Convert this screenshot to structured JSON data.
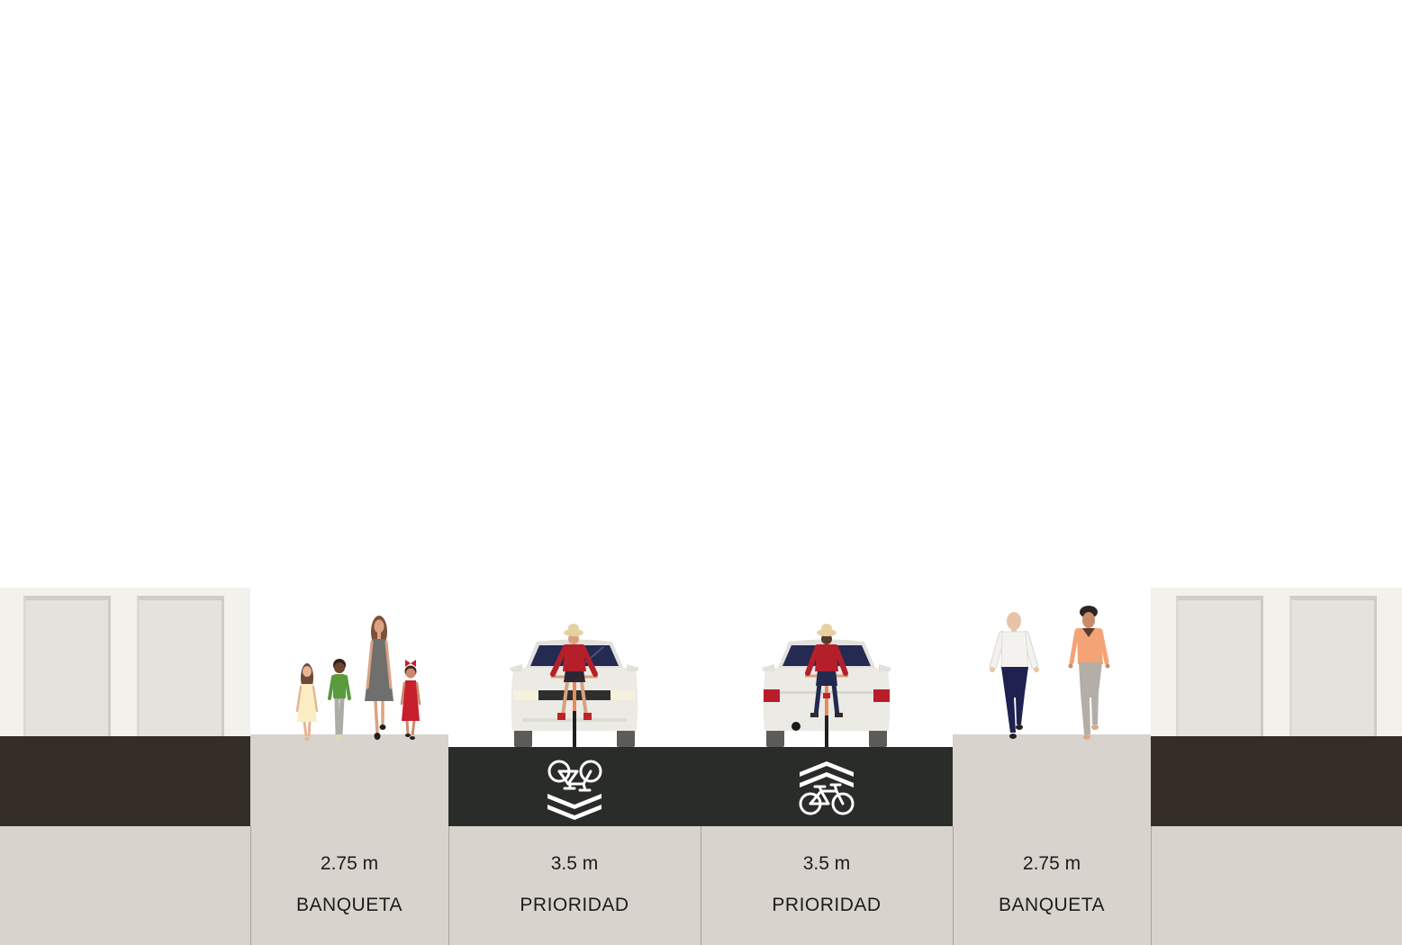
{
  "street": {
    "segments": [
      {
        "width": "2.75 m",
        "label": "BANQUETA"
      },
      {
        "width": "3.5 m",
        "label": "PRIORIDAD",
        "marking_icon": "sharrow-down-icon"
      },
      {
        "width": "3.5 m",
        "label": "PRIORIDAD",
        "marking_icon": "sharrow-up-icon"
      },
      {
        "width": "2.75 m",
        "label": "BANQUETA"
      }
    ]
  },
  "colors": {
    "sky": "#ffffff",
    "building": "#f2f1ec",
    "building_base": "#352d28",
    "sidewalk": "#d8d4cd",
    "road": "#2a2c29",
    "marking": "#ffffff",
    "label_text": "#1c1c1c"
  }
}
